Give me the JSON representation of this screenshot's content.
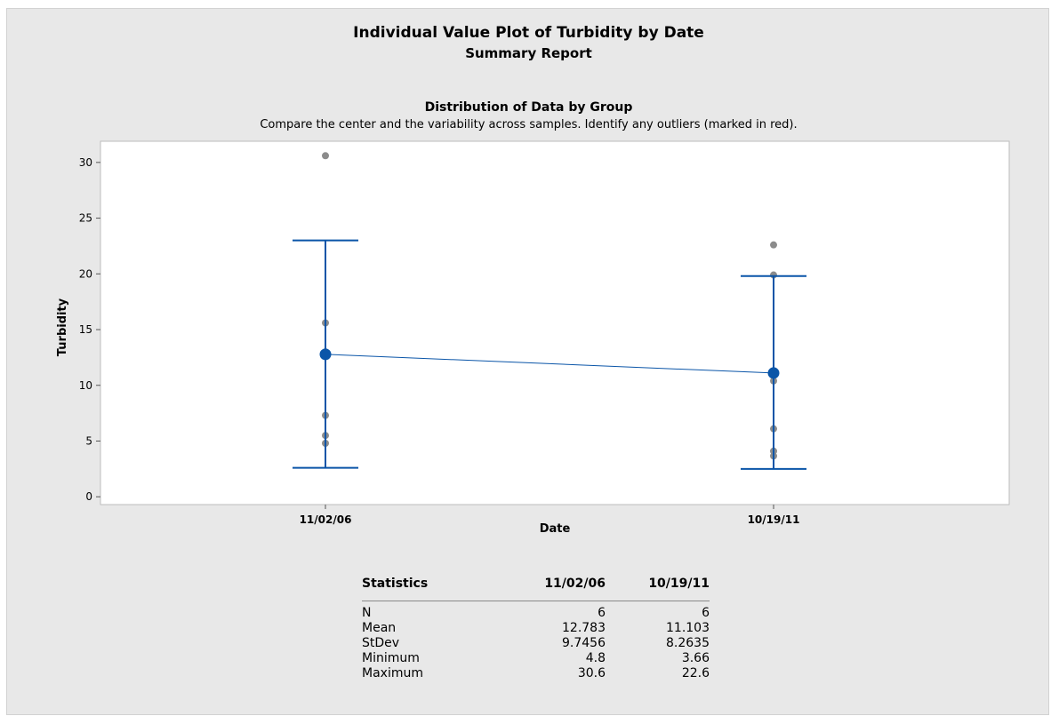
{
  "report": {
    "title": "Individual Value Plot of Turbidity by Date",
    "subtitle": "Summary Report",
    "section_title": "Distribution of Data by Group",
    "section_description": "Compare the center and the variability across samples. Identify any outliers (marked in red)."
  },
  "chart_data": {
    "type": "scatter",
    "title": "Individual Value Plot of Turbidity by Date",
    "xlabel": "Date",
    "ylabel": "Turbidity",
    "categories": [
      "11/02/06",
      "10/19/11"
    ],
    "ylim": [
      -0.7,
      31.9
    ],
    "yticks": [
      0,
      5,
      10,
      15,
      20,
      25,
      30
    ],
    "grid": false,
    "points": [
      [
        4.8,
        5.5,
        7.3,
        13.0,
        15.6,
        30.6
      ],
      [
        3.66,
        4.1,
        6.1,
        10.4,
        19.9,
        22.6
      ]
    ],
    "means": [
      12.783,
      11.103
    ],
    "interval_low": [
      2.6,
      2.5
    ],
    "interval_high": [
      23.0,
      19.8
    ],
    "colors": {
      "points": "#8c8c8c",
      "mean": "#0a55a8",
      "interval": "#0a55a8",
      "connect_line": "#0a55a8"
    }
  },
  "statistics": {
    "header": [
      "Statistics",
      "11/02/06",
      "10/19/11"
    ],
    "rows": [
      {
        "label": "N",
        "values": [
          "6",
          "6"
        ]
      },
      {
        "label": "Mean",
        "values": [
          "12.783",
          "11.103"
        ]
      },
      {
        "label": "StDev",
        "values": [
          "9.7456",
          "8.2635"
        ]
      },
      {
        "label": "Minimum",
        "values": [
          "4.8",
          "3.66"
        ]
      },
      {
        "label": "Maximum",
        "values": [
          "30.6",
          "22.6"
        ]
      }
    ]
  }
}
